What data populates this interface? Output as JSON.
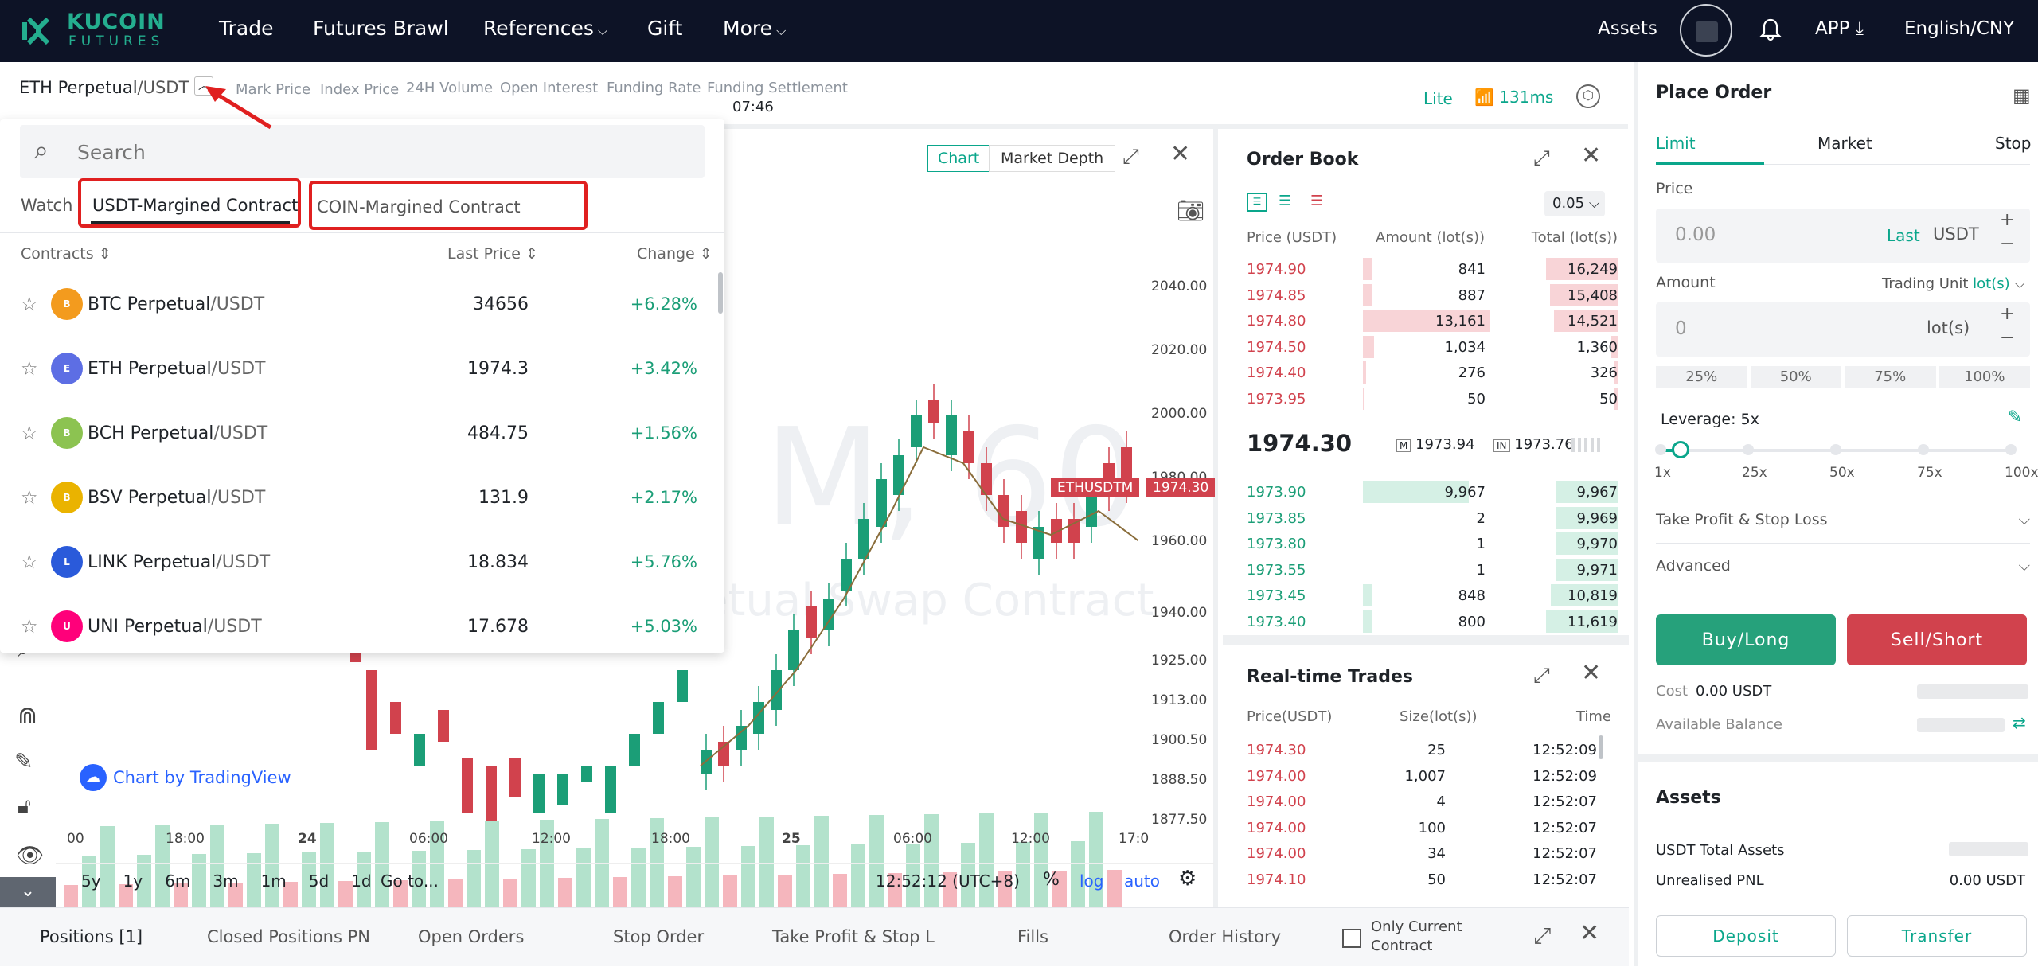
{
  "brand": {
    "name": "KUCOIN",
    "sub": "FUTURES"
  },
  "nav": {
    "trade": "Trade",
    "brawl": "Futures Brawl",
    "references": "References",
    "gift": "Gift",
    "more": "More",
    "assets": "Assets",
    "app": "APP",
    "lang": "English/CNY"
  },
  "ticker": {
    "symbol": "ETH Perpetual",
    "quote": "/USDT",
    "mark_price": "Mark Price",
    "index_price": "Index Price",
    "volume": "24H Volume",
    "open_interest": "Open Interest",
    "funding_rate": "Funding Rate",
    "funding_settlement": "Funding Settlement",
    "settlement_time": "07:46",
    "lite": "Lite",
    "latency": "131ms"
  },
  "dropdown": {
    "search_placeholder": "Search",
    "watch": "Watch",
    "tab_usdt": "USDT-Margined Contract",
    "tab_coin": "COIN-Margined Contract",
    "col_contracts": "Contracts",
    "col_last": "Last Price",
    "col_change": "Change",
    "rows": [
      {
        "name": "BTC Perpetual",
        "quote": "/USDT",
        "price": "34656",
        "change": "+6.28%",
        "coin": "BTC",
        "color": "#f39b1e"
      },
      {
        "name": "ETH Perpetual",
        "quote": "/USDT",
        "price": "1974.3",
        "change": "+3.42%",
        "coin": "ETH",
        "color": "#5d6ee4"
      },
      {
        "name": "BCH Perpetual",
        "quote": "/USDT",
        "price": "484.75",
        "change": "+1.56%",
        "coin": "BCH",
        "color": "#8cc351"
      },
      {
        "name": "BSV Perpetual",
        "quote": "/USDT",
        "price": "131.9",
        "change": "+2.17%",
        "coin": "BSV",
        "color": "#eab300"
      },
      {
        "name": "LINK Perpetual",
        "quote": "/USDT",
        "price": "18.834",
        "change": "+5.76%",
        "coin": "LINK",
        "color": "#2a5ada"
      },
      {
        "name": "UNI Perpetual",
        "quote": "/USDT",
        "price": "17.678",
        "change": "+5.03%",
        "coin": "UNI",
        "color": "#ff007a"
      }
    ]
  },
  "chart": {
    "tab_chart": "Chart",
    "tab_depth": "Market Depth",
    "watermark1": "M, 60",
    "watermark2": "etual Swap Contract",
    "price_tag": "ETHUSDTM",
    "price_tag_value": "1974.30",
    "y_ticks": [
      "2040.00",
      "2020.00",
      "2000.00",
      "1980.00",
      "1960.00",
      "1940.00",
      "1925.00",
      "1913.00",
      "1900.50",
      "1888.50",
      "1877.50"
    ],
    "x_ticks": [
      "00",
      "18:00",
      "24",
      "06:00",
      "12:00",
      "18:00",
      "25",
      "06:00",
      "12:00",
      "17:0"
    ],
    "tradingview": "Chart by TradingView",
    "timeframes": [
      "5y",
      "1y",
      "6m",
      "3m",
      "1m",
      "5d",
      "1d"
    ],
    "goto": "Go to...",
    "clock": "12:52:12 (UTC+8)",
    "pct": "%",
    "log": "log",
    "auto": "auto",
    "up_color": "#1b9e77",
    "down_color": "#d1424d"
  },
  "orderbook": {
    "title": "Order Book",
    "precision": "0.05",
    "col_price": "Price (USDT)",
    "col_amount": "Amount (lot(s))",
    "col_total": "Total (lot(s))",
    "asks": [
      {
        "price": "1974.90",
        "amount": "841",
        "total": "16,249"
      },
      {
        "price": "1974.85",
        "amount": "887",
        "total": "15,408"
      },
      {
        "price": "1974.80",
        "amount": "13,161",
        "total": "14,521"
      },
      {
        "price": "1974.50",
        "amount": "1,034",
        "total": "1,360"
      },
      {
        "price": "1974.40",
        "amount": "276",
        "total": "326"
      },
      {
        "price": "1973.95",
        "amount": "50",
        "total": "50"
      }
    ],
    "last": "1974.30",
    "mark": "1973.94",
    "index": "1973.76",
    "bids": [
      {
        "price": "1973.90",
        "amount": "9,967",
        "total": "9,967"
      },
      {
        "price": "1973.85",
        "amount": "2",
        "total": "9,969"
      },
      {
        "price": "1973.80",
        "amount": "1",
        "total": "9,970"
      },
      {
        "price": "1973.55",
        "amount": "1",
        "total": "9,971"
      },
      {
        "price": "1973.45",
        "amount": "848",
        "total": "10,819"
      },
      {
        "price": "1973.40",
        "amount": "800",
        "total": "11,619"
      }
    ]
  },
  "trades": {
    "title": "Real-time Trades",
    "col_price": "Price(USDT)",
    "col_size": "Size(lot(s))",
    "col_time": "Time",
    "rows": [
      {
        "price": "1974.30",
        "size": "25",
        "time": "12:52:09"
      },
      {
        "price": "1974.00",
        "size": "1,007",
        "time": "12:52:09"
      },
      {
        "price": "1974.00",
        "size": "4",
        "time": "12:52:07"
      },
      {
        "price": "1974.00",
        "size": "100",
        "time": "12:52:07"
      },
      {
        "price": "1974.00",
        "size": "34",
        "time": "12:52:07"
      },
      {
        "price": "1974.10",
        "size": "50",
        "time": "12:52:07"
      }
    ]
  },
  "order": {
    "title": "Place Order",
    "tab_limit": "Limit",
    "tab_market": "Market",
    "tab_stop": "Stop",
    "price_label": "Price",
    "price_placeholder": "0.00",
    "last": "Last",
    "usdt": "USDT",
    "amount_label": "Amount",
    "trading_unit": "Trading Unit",
    "unit": "lot(s)",
    "amount_placeholder": "0",
    "pcts": [
      "25%",
      "50%",
      "75%",
      "100%"
    ],
    "leverage": "Leverage: 5x",
    "lev_ticks": [
      "1x",
      "25x",
      "50x",
      "75x",
      "100x"
    ],
    "leverage_value": 5,
    "tpsl": "Take Profit & Stop Loss",
    "advanced": "Advanced",
    "buy": "Buy/Long",
    "sell": "Sell/Short",
    "cost_label": "Cost",
    "cost_value": "0.00 USDT",
    "avail": "Available Balance",
    "assets_title": "Assets",
    "usdt_total": "USDT Total Assets",
    "pnl": "Unrealised PNL",
    "pnl_value": "0.00 USDT",
    "deposit": "Deposit",
    "transfer": "Transfer"
  },
  "bottom": {
    "tabs": [
      "Positions [1]",
      "Closed Positions PN",
      "Open Orders",
      "Stop Order",
      "Take Profit & Stop L",
      "Fills",
      "Order History"
    ],
    "only_current": "Only Current Contract"
  }
}
